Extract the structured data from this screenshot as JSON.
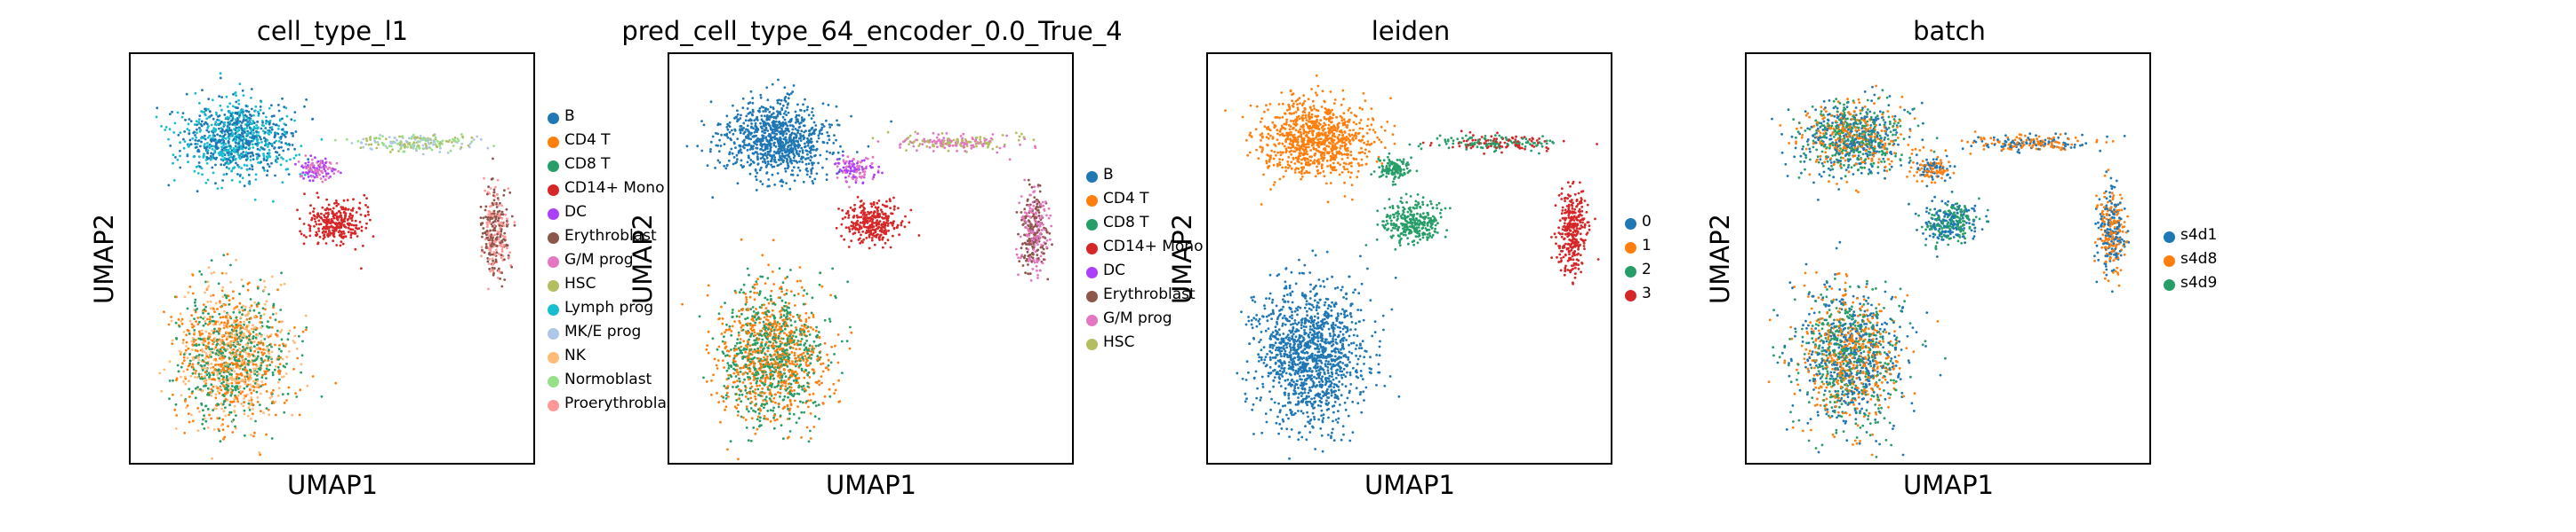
{
  "panels": [
    {
      "title": "cell_type_l1",
      "xlabel": "UMAP1",
      "ylabel": "UMAP2",
      "legend": [
        {
          "label": "B",
          "color": "#1f77b4"
        },
        {
          "label": "CD4 T",
          "color": "#ff7f0e"
        },
        {
          "label": "CD8 T",
          "color": "#279e68"
        },
        {
          "label": "CD14+ Mono",
          "color": "#d62728"
        },
        {
          "label": "DC",
          "color": "#aa40fc"
        },
        {
          "label": "Erythroblast",
          "color": "#8c564b"
        },
        {
          "label": "G/M prog",
          "color": "#e377c2"
        },
        {
          "label": "HSC",
          "color": "#b5bd61"
        },
        {
          "label": "Lymph prog",
          "color": "#17becf"
        },
        {
          "label": "MK/E prog",
          "color": "#aec7e8"
        },
        {
          "label": "NK",
          "color": "#ffbb78"
        },
        {
          "label": "Normoblast",
          "color": "#98df8a"
        },
        {
          "label": "Proerythroblast",
          "color": "#ff9896"
        }
      ]
    },
    {
      "title": "pred_cell_type_64_encoder_0.0_True_4",
      "xlabel": "UMAP1",
      "ylabel": "UMAP2",
      "legend": [
        {
          "label": "B",
          "color": "#1f77b4"
        },
        {
          "label": "CD4 T",
          "color": "#ff7f0e"
        },
        {
          "label": "CD8 T",
          "color": "#279e68"
        },
        {
          "label": "CD14+ Mono",
          "color": "#d62728"
        },
        {
          "label": "DC",
          "color": "#aa40fc"
        },
        {
          "label": "Erythroblast",
          "color": "#8c564b"
        },
        {
          "label": "G/M prog",
          "color": "#e377c2"
        },
        {
          "label": "HSC",
          "color": "#b5bd61"
        }
      ]
    },
    {
      "title": "leiden",
      "xlabel": "UMAP1",
      "ylabel": "UMAP2",
      "legend": [
        {
          "label": "0",
          "color": "#1f77b4"
        },
        {
          "label": "1",
          "color": "#ff7f0e"
        },
        {
          "label": "2",
          "color": "#279e68"
        },
        {
          "label": "3",
          "color": "#d62728"
        }
      ]
    },
    {
      "title": "batch",
      "xlabel": "UMAP1",
      "ylabel": "UMAP2",
      "legend": [
        {
          "label": "s4d1",
          "color": "#1f77b4"
        },
        {
          "label": "s4d8",
          "color": "#ff7f0e"
        },
        {
          "label": "s4d9",
          "color": "#279e68"
        }
      ]
    }
  ],
  "chart_data": [
    {
      "type": "scatter",
      "title": "cell_type_l1",
      "xlabel": "UMAP1",
      "ylabel": "UMAP2",
      "grid": false,
      "legend_position": "right",
      "series": [
        {
          "name": "B",
          "color": "#1f77b4"
        },
        {
          "name": "CD4 T",
          "color": "#ff7f0e"
        },
        {
          "name": "CD8 T",
          "color": "#279e68"
        },
        {
          "name": "CD14+ Mono",
          "color": "#d62728"
        },
        {
          "name": "DC",
          "color": "#aa40fc"
        },
        {
          "name": "Erythroblast",
          "color": "#8c564b"
        },
        {
          "name": "G/M prog",
          "color": "#e377c2"
        },
        {
          "name": "HSC",
          "color": "#b5bd61"
        },
        {
          "name": "Lymph prog",
          "color": "#17becf"
        },
        {
          "name": "MK/E prog",
          "color": "#aec7e8"
        },
        {
          "name": "NK",
          "color": "#ffbb78"
        },
        {
          "name": "Normoblast",
          "color": "#98df8a"
        },
        {
          "name": "Proerythroblast",
          "color": "#ff9896"
        }
      ]
    },
    {
      "type": "scatter",
      "title": "pred_cell_type_64_encoder_0.0_True_4",
      "xlabel": "UMAP1",
      "ylabel": "UMAP2",
      "grid": false,
      "legend_position": "right",
      "series": [
        {
          "name": "B",
          "color": "#1f77b4"
        },
        {
          "name": "CD4 T",
          "color": "#ff7f0e"
        },
        {
          "name": "CD8 T",
          "color": "#279e68"
        },
        {
          "name": "CD14+ Mono",
          "color": "#d62728"
        },
        {
          "name": "DC",
          "color": "#aa40fc"
        },
        {
          "name": "Erythroblast",
          "color": "#8c564b"
        },
        {
          "name": "G/M prog",
          "color": "#e377c2"
        },
        {
          "name": "HSC",
          "color": "#b5bd61"
        }
      ]
    },
    {
      "type": "scatter",
      "title": "leiden",
      "xlabel": "UMAP1",
      "ylabel": "UMAP2",
      "grid": false,
      "legend_position": "right",
      "series": [
        {
          "name": "0",
          "color": "#1f77b4"
        },
        {
          "name": "1",
          "color": "#ff7f0e"
        },
        {
          "name": "2",
          "color": "#279e68"
        },
        {
          "name": "3",
          "color": "#d62728"
        }
      ]
    },
    {
      "type": "scatter",
      "title": "batch",
      "xlabel": "UMAP1",
      "ylabel": "UMAP2",
      "grid": false,
      "legend_position": "right",
      "series": [
        {
          "name": "s4d1",
          "color": "#1f77b4"
        },
        {
          "name": "s4d8",
          "color": "#ff7f0e"
        },
        {
          "name": "s4d9",
          "color": "#279e68"
        }
      ]
    }
  ]
}
